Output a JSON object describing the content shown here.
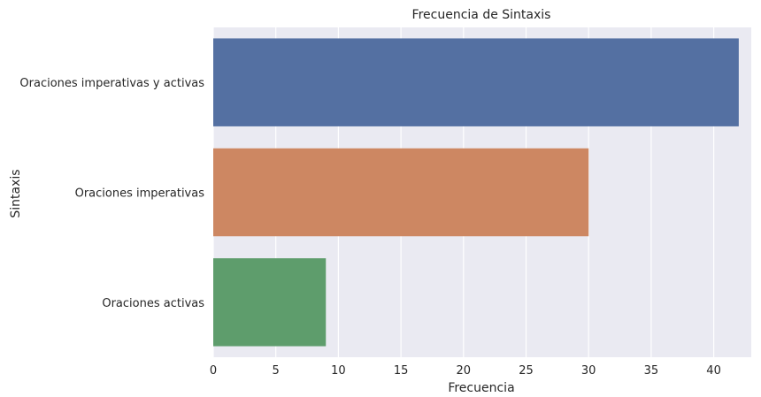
{
  "chart_data": {
    "type": "bar",
    "orientation": "horizontal",
    "title": "Frecuencia de Sintaxis",
    "xlabel": "Frecuencia",
    "ylabel": "Sintaxis",
    "categories": [
      "Oraciones imperativas y activas",
      "Oraciones imperativas",
      "Oraciones activas"
    ],
    "values": [
      42,
      30,
      9
    ],
    "colors": [
      "#5470a2",
      "#cd8762",
      "#5e9d6c"
    ],
    "xlim": [
      0,
      43
    ],
    "xticks": [
      0,
      5,
      10,
      15,
      20,
      25,
      30,
      35,
      40
    ],
    "grid": true,
    "plot_background": "#eaeaf2",
    "grid_color": "#ffffff"
  }
}
